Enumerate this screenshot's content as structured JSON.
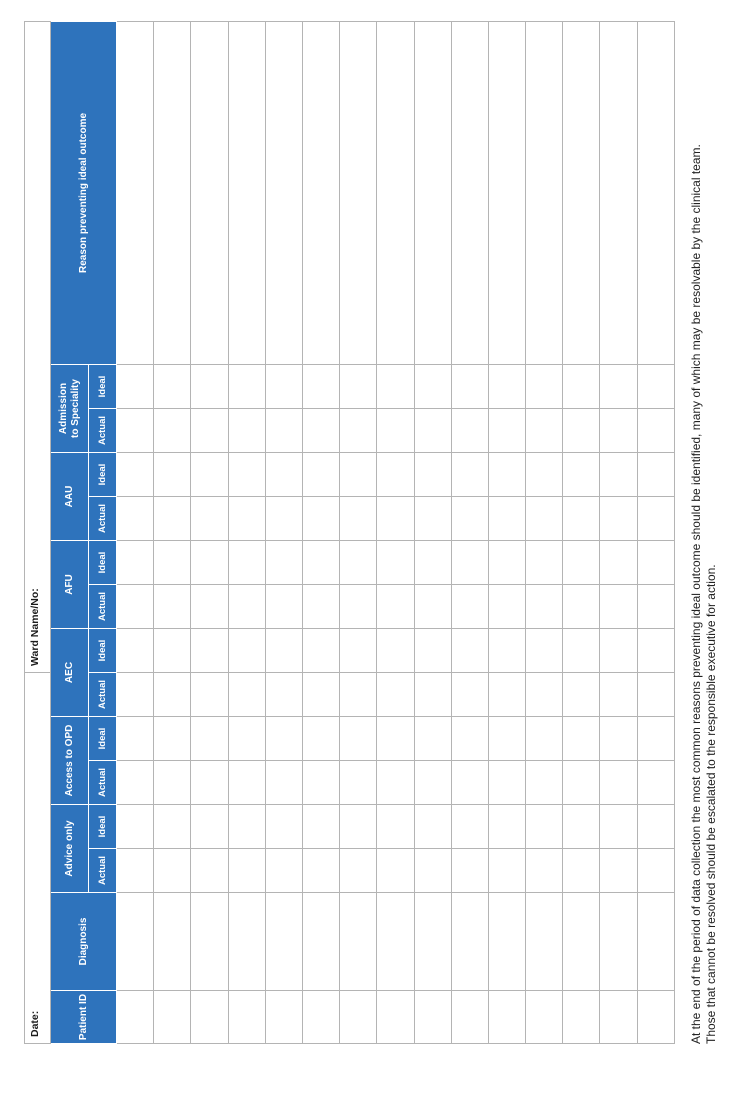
{
  "form": {
    "date_label": "Date:",
    "ward_label": "Ward Name/No:",
    "columns": {
      "patient_id": "Patient ID",
      "diagnosis": "Diagnosis",
      "advice_only": "Advice only",
      "access_to_opd": "Access to OPD",
      "aec": "AEC",
      "afu": "AFU",
      "aau": "AAU",
      "admission_line1": "Admission",
      "admission_line2": "to Speciality",
      "reason": "Reason preventing ideal outcome",
      "actual": "Actual",
      "ideal": "Ideal"
    },
    "data_row_count": 15,
    "colors": {
      "header_bg": "#2e73bc",
      "header_text": "#ffffff",
      "grid_line": "#b4b4b4"
    }
  },
  "footer": {
    "line1": "At the end of the period of data collection the most common reasons preventing ideal outcome should be identified, many of which may be resolvable by the clinical team.",
    "line2": "Those that cannot be resolved should be escalated to the responsible executive for action."
  }
}
